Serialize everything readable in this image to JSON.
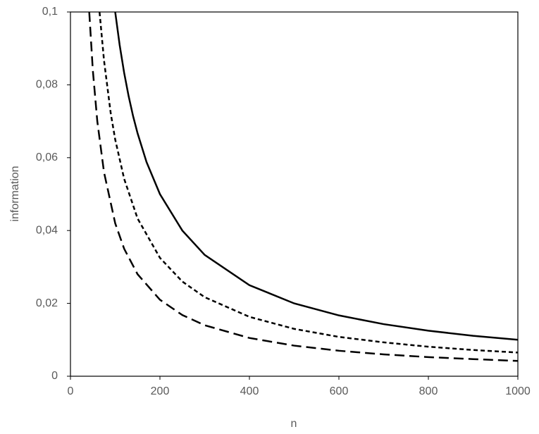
{
  "chart_data": {
    "type": "line",
    "xlabel": "n",
    "ylabel": "information",
    "xlim": [
      0,
      1000
    ],
    "xticks": [
      0,
      200,
      400,
      600,
      800,
      1000
    ],
    "ylim": [
      0,
      0.1
    ],
    "yticks": [
      0,
      {
        "value": 0.02,
        "label": "0,02"
      },
      {
        "value": 0.04,
        "label": "0,04"
      },
      {
        "value": 0.06,
        "label": "0,06"
      },
      {
        "value": 0.08,
        "label": "0,08"
      },
      {
        "value": 0.1,
        "label": "0,1"
      }
    ],
    "grid": false,
    "series": [
      {
        "color": "#000000",
        "dash": "solid",
        "x": [
          100,
          110,
          120,
          130,
          140,
          150,
          170,
          200,
          250,
          300,
          400,
          500,
          600,
          700,
          800,
          900,
          1000
        ],
        "values": [
          0.1,
          0.0909,
          0.0833,
          0.0769,
          0.0714,
          0.0667,
          0.0588,
          0.05,
          0.04,
          0.0333,
          0.025,
          0.02,
          0.0167,
          0.0143,
          0.0125,
          0.0111,
          0.01
        ]
      },
      {
        "color": "#000000",
        "dash": "short",
        "x": [
          65,
          75,
          90,
          100,
          120,
          150,
          200,
          250,
          300,
          400,
          500,
          600,
          700,
          800,
          900,
          1000
        ],
        "values": [
          0.1,
          0.0867,
          0.0722,
          0.065,
          0.0542,
          0.0433,
          0.0325,
          0.026,
          0.0217,
          0.0163,
          0.013,
          0.0108,
          0.0093,
          0.0081,
          0.0072,
          0.0065
        ]
      },
      {
        "color": "#000000",
        "dash": "long",
        "x": [
          42,
          50,
          60,
          75,
          100,
          120,
          150,
          200,
          250,
          300,
          400,
          500,
          600,
          700,
          800,
          900,
          1000
        ],
        "values": [
          0.1,
          0.084,
          0.07,
          0.056,
          0.042,
          0.035,
          0.028,
          0.021,
          0.0168,
          0.014,
          0.0105,
          0.0084,
          0.007,
          0.006,
          0.00525,
          0.0047,
          0.0042
        ]
      }
    ]
  }
}
